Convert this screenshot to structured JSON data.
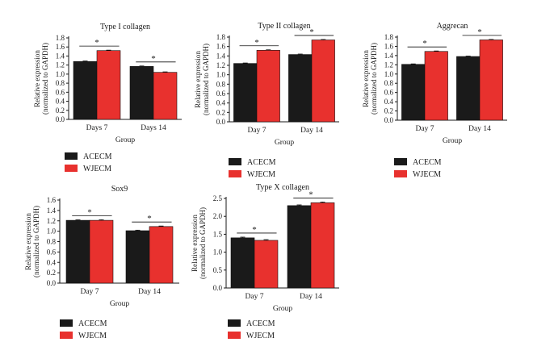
{
  "colors": {
    "ACECM": "#1a1a1a",
    "WJECM": "#e8312e",
    "axis": "#1a1a1a"
  },
  "chart_data": [
    {
      "type": "bar",
      "title": "Type I collagen",
      "xlabel": "Group",
      "ylabel": [
        "Relative expression",
        "(normalized to GAPDH)"
      ],
      "categories": [
        "Days 7",
        "Days 14"
      ],
      "ylim": [
        0,
        1.8
      ],
      "yticks": [
        "0.0",
        "0.2",
        "0.4",
        "0.6",
        "0.8",
        "1.0",
        "1.2",
        "1.4",
        "1.6",
        "1.8"
      ],
      "series": [
        {
          "name": "ACECM",
          "values": [
            1.28,
            1.17
          ],
          "errors": [
            0.01,
            0.01
          ]
        },
        {
          "name": "WJECM",
          "values": [
            1.52,
            1.04
          ],
          "errors": [
            0.01,
            0.01
          ]
        }
      ],
      "significance": [
        "*",
        "*"
      ],
      "legend": "bottom-left"
    },
    {
      "type": "bar",
      "title": "Type II collagen",
      "xlabel": "Group",
      "ylabel": [
        "Relative expression",
        "(normalized to GAPDH)"
      ],
      "categories": [
        "Day 7",
        "Day 14"
      ],
      "ylim": [
        0,
        1.8
      ],
      "yticks": [
        "0.0",
        "0.2",
        "0.4",
        "0.6",
        "0.8",
        "1.0",
        "1.2",
        "1.4",
        "1.6",
        "1.8"
      ],
      "series": [
        {
          "name": "ACECM",
          "values": [
            1.24,
            1.43
          ],
          "errors": [
            0.01,
            0.01
          ]
        },
        {
          "name": "WJECM",
          "values": [
            1.52,
            1.74
          ],
          "errors": [
            0.01,
            0.01
          ]
        }
      ],
      "significance": [
        "*",
        "*"
      ],
      "legend": "bottom-left"
    },
    {
      "type": "bar",
      "title": "Aggrecan",
      "xlabel": "Group",
      "ylabel": [
        "Relative expression",
        "(normalized to GAPDH)"
      ],
      "categories": [
        "Day 7",
        "Day 14"
      ],
      "ylim": [
        0,
        1.8
      ],
      "yticks": [
        "0.0",
        "0.2",
        "0.4",
        "0.6",
        "0.8",
        "1.0",
        "1.2",
        "1.4",
        "1.6",
        "1.8"
      ],
      "series": [
        {
          "name": "ACECM",
          "values": [
            1.21,
            1.38
          ],
          "errors": [
            0.01,
            0.01
          ]
        },
        {
          "name": "WJECM",
          "values": [
            1.49,
            1.74
          ],
          "errors": [
            0.01,
            0.01
          ]
        }
      ],
      "significance": [
        "*",
        "*"
      ],
      "legend": "bottom-left"
    },
    {
      "type": "bar",
      "title": "Sox9",
      "xlabel": "Group",
      "ylabel": [
        "Relative expression",
        "(normalized to GAPDH)"
      ],
      "categories": [
        "Day 7",
        "Day 14"
      ],
      "ylim": [
        0,
        1.6
      ],
      "yticks": [
        "0.0",
        "0.2",
        "0.4",
        "0.6",
        "0.8",
        "1.0",
        "1.2",
        "1.4",
        "1.6"
      ],
      "series": [
        {
          "name": "ACECM",
          "values": [
            1.21,
            1.01
          ],
          "errors": [
            0.01,
            0.01
          ]
        },
        {
          "name": "WJECM",
          "values": [
            1.21,
            1.09
          ],
          "errors": [
            0.01,
            0.01
          ]
        }
      ],
      "significance": [
        "*",
        "*"
      ],
      "legend": "bottom-left"
    },
    {
      "type": "bar",
      "title": "Type X collagen",
      "xlabel": "Group",
      "ylabel": [
        "Relative expression",
        "(normalized to GAPDH)"
      ],
      "categories": [
        "Day 7",
        "Day 14"
      ],
      "ylim": [
        0,
        2.5
      ],
      "yticks": [
        "0.0",
        "0.5",
        "1.0",
        "1.5",
        "2.0",
        "2.5"
      ],
      "series": [
        {
          "name": "ACECM",
          "values": [
            1.4,
            2.3
          ],
          "errors": [
            0.02,
            0.02
          ]
        },
        {
          "name": "WJECM",
          "values": [
            1.33,
            2.38
          ],
          "errors": [
            0.02,
            0.02
          ]
        }
      ],
      "significance": [
        "*",
        "*"
      ],
      "legend": "bottom-left"
    }
  ]
}
